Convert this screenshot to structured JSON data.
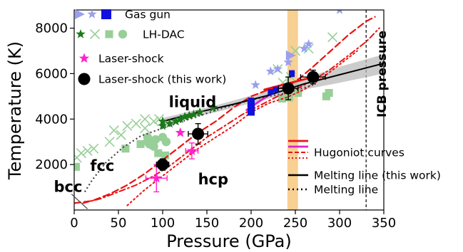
{
  "chart_data": {
    "type": "scatter",
    "xlabel": "Pressure (GPa)",
    "ylabel": "Temperature (K)",
    "xlim": [
      0,
      350
    ],
    "ylim": [
      0,
      8800
    ],
    "xticks": [
      0,
      50,
      100,
      150,
      200,
      250,
      300,
      350
    ],
    "yticks": [
      2000,
      4000,
      6000,
      8000
    ],
    "xtick_labels": [
      "0",
      "50",
      "100",
      "150",
      "200",
      "250",
      "300",
      "350"
    ],
    "ytick_labels": [
      "2000",
      "4000",
      "6000",
      "8000"
    ],
    "grid": false,
    "colors": {
      "gas_gun": "#1111dd",
      "gas_gun_light": "#9aa0ee",
      "lh_dac": "#1a7a1a",
      "lh_dac_light": "#98cf98",
      "laser_shock": "#ff22cc",
      "this_work": "#000000",
      "hugoniot": "#ee1111",
      "hugoniot_light": "#ee8888",
      "hugoniot_magenta": "#dd22cc",
      "band": "#f6c477",
      "uncertainty": "#bbbbbb"
    },
    "icb_pressure": {
      "x": 330,
      "label": "ICB pressure"
    },
    "highlight_band": {
      "x_range": [
        241,
        253
      ]
    },
    "phase_labels": [
      {
        "text": "liquid",
        "x": 107,
        "y": 4520
      },
      {
        "text": "fcc",
        "x": 18,
        "y": 1720
      },
      {
        "text": "hcp",
        "x": 140,
        "y": 1120
      },
      {
        "text": "bcc",
        "x": -23,
        "y": 800
      }
    ],
    "legend": [
      {
        "label": "Gas gun",
        "marker": "gas-gun"
      },
      {
        "label": "LH-DAC",
        "marker": "lh-dac"
      },
      {
        "label": "Laser-shock",
        "marker": "laser-shock"
      },
      {
        "label": "Laser-shock (this work)",
        "marker": "this-work"
      },
      {
        "label": "Hugoniot curves",
        "marker": "hugoniot"
      },
      {
        "label": "Melting line (this work)",
        "marker": "solid-line"
      },
      {
        "label": "Melting line",
        "marker": "dotted-line"
      }
    ],
    "series": [
      {
        "name": "Laser-shock (this work)",
        "kind": "scatter",
        "points": [
          {
            "x": 100,
            "y": 2000,
            "xerr": 7,
            "yerr": 250
          },
          {
            "x": 140,
            "y": 3350,
            "xerr": 11,
            "yerr": 450
          },
          {
            "x": 242,
            "y": 5350,
            "xerr": 11,
            "yerr": 500
          },
          {
            "x": 270,
            "y": 5850,
            "xerr": 14,
            "yerr": 300
          }
        ]
      },
      {
        "name": "Laser-shock",
        "kind": "scatter",
        "points": [
          {
            "x": 93,
            "y": 1400,
            "xerr": 12,
            "yerr": 600
          },
          {
            "x": 133,
            "y": 2600,
            "xerr": 7,
            "yerr": 350
          },
          {
            "x": 120,
            "y": 3400,
            "xerr": 0,
            "yerr": 0
          }
        ]
      },
      {
        "name": "Gas gun",
        "kind": "scatter",
        "points": [
          {
            "x": 200,
            "y": 4500,
            "w": 5,
            "h": 700
          },
          {
            "x": 222,
            "y": 5200,
            "w": 4,
            "h": 250
          },
          {
            "x": 228,
            "y": 5300,
            "w": 4,
            "h": 250
          },
          {
            "x": 200,
            "y": 4800,
            "w": 4,
            "h": 300
          },
          {
            "x": 246,
            "y": 6000,
            "w": 4,
            "h": 300
          }
        ],
        "light_points": [
          {
            "x": 245,
            "y": 6800,
            "m": "tri"
          },
          {
            "x": 242,
            "y": 6500,
            "m": "star"
          },
          {
            "x": 260,
            "y": 7100,
            "m": "star"
          },
          {
            "x": 265,
            "y": 7300,
            "m": "star"
          },
          {
            "x": 300,
            "y": 8800,
            "m": "star"
          },
          {
            "x": 230,
            "y": 6200,
            "m": "star"
          },
          {
            "x": 222,
            "y": 6100,
            "m": "star"
          },
          {
            "x": 205,
            "y": 5500,
            "m": "star"
          }
        ]
      },
      {
        "name": "LH-DAC",
        "kind": "scatter",
        "points": [
          {
            "x": 100,
            "y": 3700,
            "m": "star"
          },
          {
            "x": 100,
            "y": 3900,
            "m": "star"
          },
          {
            "x": 108,
            "y": 3800,
            "m": "star"
          },
          {
            "x": 115,
            "y": 3900,
            "m": "star"
          },
          {
            "x": 120,
            "y": 4000,
            "m": "star"
          },
          {
            "x": 125,
            "y": 4100,
            "m": "star"
          },
          {
            "x": 130,
            "y": 4150,
            "m": "star"
          },
          {
            "x": 135,
            "y": 4200,
            "m": "star"
          },
          {
            "x": 142,
            "y": 4300,
            "m": "star"
          },
          {
            "x": 157,
            "y": 4500,
            "m": "star"
          }
        ],
        "light_points": [
          {
            "x": 2,
            "y": 1900,
            "m": "sq"
          },
          {
            "x": 58,
            "y": 2700,
            "m": "sq"
          },
          {
            "x": 75,
            "y": 2900,
            "m": "sq"
          },
          {
            "x": 95,
            "y": 2500,
            "m": "sq"
          },
          {
            "x": 103,
            "y": 2400,
            "m": "sq"
          },
          {
            "x": 200,
            "y": 4700,
            "m": "sq"
          },
          {
            "x": 235,
            "y": 4900,
            "m": "sq"
          },
          {
            "x": 243,
            "y": 4950,
            "m": "sq"
          },
          {
            "x": 253,
            "y": 5150,
            "m": "sq"
          },
          {
            "x": 285,
            "y": 5000,
            "m": "sq"
          },
          {
            "x": 288,
            "y": 5150,
            "m": "sq"
          },
          {
            "x": 83,
            "y": 3000,
            "m": "circ"
          },
          {
            "x": 83,
            "y": 3200,
            "m": "circ"
          },
          {
            "x": 85,
            "y": 2900,
            "m": "circ"
          },
          {
            "x": 88,
            "y": 2850,
            "m": "circ"
          },
          {
            "x": 90,
            "y": 2800,
            "m": "circ"
          },
          {
            "x": 92,
            "y": 3100,
            "m": "circ"
          },
          {
            "x": 100,
            "y": 3200,
            "m": "circ"
          },
          {
            "x": 104,
            "y": 3000,
            "m": "circ"
          },
          {
            "x": 3,
            "y": 2300,
            "m": "x"
          },
          {
            "x": 8,
            "y": 2500,
            "m": "x"
          },
          {
            "x": 15,
            "y": 2600,
            "m": "x"
          },
          {
            "x": 22,
            "y": 2700,
            "m": "x"
          },
          {
            "x": 40,
            "y": 3000,
            "m": "x"
          },
          {
            "x": 45,
            "y": 3500,
            "m": "x"
          },
          {
            "x": 53,
            "y": 3300,
            "m": "x"
          },
          {
            "x": 60,
            "y": 3700,
            "m": "x"
          },
          {
            "x": 70,
            "y": 3800,
            "m": "x"
          },
          {
            "x": 80,
            "y": 3600,
            "m": "x"
          },
          {
            "x": 80,
            "y": 4000,
            "m": "x"
          },
          {
            "x": 90,
            "y": 3900,
            "m": "x"
          },
          {
            "x": 96,
            "y": 4000,
            "m": "x"
          },
          {
            "x": 230,
            "y": 6200,
            "m": "x"
          },
          {
            "x": 236,
            "y": 5600,
            "m": "x"
          },
          {
            "x": 245,
            "y": 5850,
            "m": "x"
          },
          {
            "x": 250,
            "y": 7000,
            "m": "x"
          },
          {
            "x": 265,
            "y": 7100,
            "m": "x"
          },
          {
            "x": 292,
            "y": 7600,
            "m": "x"
          }
        ]
      },
      {
        "name": "Melting line (this work)",
        "kind": "line",
        "points": [
          [
            100,
            3900
          ],
          [
            140,
            4300
          ],
          [
            180,
            4650
          ],
          [
            220,
            5050
          ],
          [
            260,
            5550
          ],
          [
            300,
            5950
          ],
          [
            350,
            6450
          ]
        ],
        "band_upper": [
          [
            100,
            4050
          ],
          [
            160,
            4600
          ],
          [
            220,
            5250
          ],
          [
            260,
            5800
          ],
          [
            300,
            6300
          ],
          [
            350,
            6850
          ]
        ],
        "band_lower": [
          [
            100,
            3750
          ],
          [
            160,
            4300
          ],
          [
            220,
            4900
          ],
          [
            260,
            5300
          ],
          [
            300,
            5600
          ],
          [
            350,
            6000
          ]
        ]
      },
      {
        "name": "Melting line",
        "kind": "line",
        "points": [
          [
            12,
            800
          ],
          [
            20,
            1300
          ],
          [
            35,
            2050
          ],
          [
            55,
            2750
          ],
          [
            75,
            3250
          ],
          [
            100,
            3600
          ],
          [
            130,
            4000
          ],
          [
            165,
            4450
          ],
          [
            200,
            4850
          ],
          [
            240,
            5150
          ],
          [
            270,
            5500
          ]
        ]
      },
      {
        "name": "Hugoniot curves",
        "kind": "line",
        "curves": [
          {
            "style": "solid",
            "points": [
              [
                215,
                5300
              ],
              [
                235,
                5500
              ],
              [
                250,
                5650
              ],
              [
                265,
                5800
              ]
            ]
          },
          {
            "style": "dash",
            "points": [
              [
                0,
                300
              ],
              [
                20,
                400
              ],
              [
                40,
                700
              ],
              [
                60,
                1100
              ],
              [
                80,
                1600
              ],
              [
                100,
                2200
              ],
              [
                120,
                2800
              ],
              [
                140,
                3400
              ],
              [
                160,
                3900
              ],
              [
                180,
                4500
              ],
              [
                200,
                5000
              ],
              [
                220,
                5300
              ],
              [
                240,
                5400
              ],
              [
                255,
                5800
              ],
              [
                270,
                6300
              ],
              [
                290,
                7000
              ],
              [
                310,
                7700
              ],
              [
                330,
                8300
              ],
              [
                340,
                8500
              ]
            ]
          },
          {
            "style": "dashdot",
            "points": [
              [
                10,
                300
              ],
              [
                30,
                500
              ],
              [
                50,
                800
              ],
              [
                70,
                1100
              ],
              [
                90,
                1500
              ],
              [
                110,
                2000
              ],
              [
                130,
                2600
              ],
              [
                150,
                3200
              ],
              [
                170,
                3700
              ],
              [
                190,
                4200
              ],
              [
                210,
                4600
              ],
              [
                230,
                5000
              ],
              [
                250,
                5300
              ],
              [
                270,
                5700
              ],
              [
                290,
                6200
              ],
              [
                310,
                6800
              ],
              [
                330,
                7400
              ],
              [
                345,
                8000
              ]
            ]
          },
          {
            "style": "dotted",
            "points": [
              [
                60,
                200
              ],
              [
                80,
                900
              ],
              [
                100,
                1500
              ],
              [
                120,
                2100
              ],
              [
                140,
                2700
              ],
              [
                160,
                3200
              ],
              [
                180,
                3700
              ],
              [
                200,
                4300
              ],
              [
                220,
                4700
              ],
              [
                240,
                4950
              ],
              [
                260,
                5300
              ],
              [
                280,
                5800
              ],
              [
                300,
                6400
              ],
              [
                320,
                7000
              ]
            ]
          },
          {
            "style": "magenta",
            "points": [
              [
                195,
                4400
              ],
              [
                210,
                4800
              ],
              [
                220,
                5050
              ]
            ]
          }
        ]
      }
    ]
  }
}
